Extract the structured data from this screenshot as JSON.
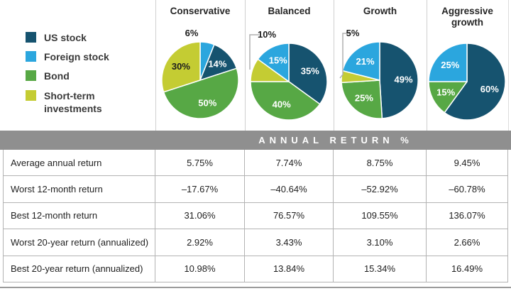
{
  "colors": {
    "US stock": "#16536f",
    "Foreign stock": "#2ba6de",
    "Bond": "#57a845",
    "Short-term investments": "#c4cc33",
    "band_gray": "#8f8f8f",
    "leader_gray": "#b0b0b0",
    "inside_label": "#ffffff",
    "dark_label": "#1d1d1d"
  },
  "legend": {
    "items": [
      {
        "label": "US stock"
      },
      {
        "label": "Foreign stock"
      },
      {
        "label": "Bond"
      },
      {
        "label": "Short-term investments"
      }
    ]
  },
  "portfolios": [
    {
      "name": "Conservative",
      "slices": [
        {
          "asset": "Foreign stock",
          "pct": 6,
          "label": "6%",
          "label_style": "outside"
        },
        {
          "asset": "US stock",
          "pct": 14,
          "label": "14%",
          "label_style": "inside-light"
        },
        {
          "asset": "Bond",
          "pct": 50,
          "label": "50%",
          "label_style": "inside-light"
        },
        {
          "asset": "Short-term investments",
          "pct": 30,
          "label": "30%",
          "label_style": "inside-dark"
        }
      ]
    },
    {
      "name": "Balanced",
      "slices": [
        {
          "asset": "US stock",
          "pct": 35,
          "label": "35%",
          "label_style": "inside-light"
        },
        {
          "asset": "Bond",
          "pct": 40,
          "label": "40%",
          "label_style": "inside-light"
        },
        {
          "asset": "Short-term investments",
          "pct": 10,
          "label": "10%",
          "label_style": "outside"
        },
        {
          "asset": "Foreign stock",
          "pct": 15,
          "label": "15%",
          "label_style": "inside-light"
        }
      ]
    },
    {
      "name": "Growth",
      "slices": [
        {
          "asset": "US stock",
          "pct": 49,
          "label": "49%",
          "label_style": "inside-light"
        },
        {
          "asset": "Bond",
          "pct": 25,
          "label": "25%",
          "label_style": "inside-light"
        },
        {
          "asset": "Short-term investments",
          "pct": 5,
          "label": "5%",
          "label_style": "outside"
        },
        {
          "asset": "Foreign stock",
          "pct": 21,
          "label": "21%",
          "label_style": "inside-light"
        }
      ]
    },
    {
      "name": "Aggressive growth",
      "slices": [
        {
          "asset": "US stock",
          "pct": 60,
          "label": "60%",
          "label_style": "inside-light"
        },
        {
          "asset": "Bond",
          "pct": 15,
          "label": "15%",
          "label_style": "inside-light"
        },
        {
          "asset": "Foreign stock",
          "pct": 25,
          "label": "25%",
          "label_style": "inside-light"
        }
      ]
    }
  ],
  "table": {
    "header": "ANNUAL RETURN %",
    "rows": [
      {
        "label": "Average annual return",
        "values": [
          "5.75%",
          "7.74%",
          "8.75%",
          "9.45%"
        ]
      },
      {
        "label": "Worst 12-month return",
        "values": [
          "–17.67%",
          "–40.64%",
          "–52.92%",
          "–60.78%"
        ]
      },
      {
        "label": "Best 12-month return",
        "values": [
          "31.06%",
          "76.57%",
          "109.55%",
          "136.07%"
        ]
      },
      {
        "label": "Worst 20-year return (annualized)",
        "values": [
          "2.92%",
          "3.43%",
          "3.10%",
          "2.66%"
        ]
      },
      {
        "label": "Best 20-year return (annualized)",
        "values": [
          "10.98%",
          "13.84%",
          "15.34%",
          "16.49%"
        ]
      }
    ]
  },
  "chart_data": [
    {
      "type": "pie",
      "title": "Conservative",
      "labels": [
        "Foreign stock",
        "US stock",
        "Bond",
        "Short-term investments"
      ],
      "values": [
        6,
        14,
        50,
        30
      ]
    },
    {
      "type": "pie",
      "title": "Balanced",
      "labels": [
        "US stock",
        "Bond",
        "Short-term investments",
        "Foreign stock"
      ],
      "values": [
        35,
        40,
        10,
        15
      ]
    },
    {
      "type": "pie",
      "title": "Growth",
      "labels": [
        "US stock",
        "Bond",
        "Short-term investments",
        "Foreign stock"
      ],
      "values": [
        49,
        25,
        5,
        21
      ]
    },
    {
      "type": "pie",
      "title": "Aggressive growth",
      "labels": [
        "US stock",
        "Bond",
        "Foreign stock"
      ],
      "values": [
        60,
        15,
        25
      ]
    },
    {
      "type": "table",
      "title": "ANNUAL RETURN %",
      "columns": [
        "Conservative",
        "Balanced",
        "Growth",
        "Aggressive growth"
      ],
      "rows": [
        {
          "label": "Average annual return",
          "values": [
            5.75,
            7.74,
            8.75,
            9.45
          ]
        },
        {
          "label": "Worst 12-month return",
          "values": [
            -17.67,
            -40.64,
            -52.92,
            -60.78
          ]
        },
        {
          "label": "Best 12-month return",
          "values": [
            31.06,
            76.57,
            109.55,
            136.07
          ]
        },
        {
          "label": "Worst 20-year return (annualized)",
          "values": [
            2.92,
            3.43,
            3.1,
            2.66
          ]
        },
        {
          "label": "Best 20-year return (annualized)",
          "values": [
            10.98,
            13.84,
            15.34,
            16.49
          ]
        }
      ]
    }
  ]
}
